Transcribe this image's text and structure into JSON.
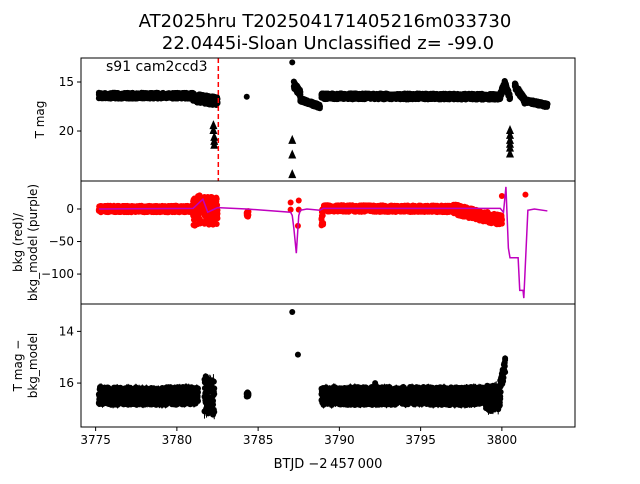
{
  "chart_data": {
    "type": "scatter",
    "title_line1": "AT2025hru  T202504171405216m033730",
    "title_line2": "22.0445i-Sloan Unclassified z= -99.0",
    "xlabel": "BTJD −2 457 000",
    "xlim": [
      3774.1,
      3804.5
    ],
    "xticks": [
      3775,
      3780,
      3785,
      3790,
      3795,
      3800
    ],
    "xtick_labels": [
      "3775",
      "3780",
      "3785",
      "3790",
      "3795",
      "3800"
    ],
    "colors": {
      "mag": "#000000",
      "bkg": "#ff0000",
      "model": "#bf00bf",
      "marker_line": "#ff0000"
    },
    "panels": [
      {
        "id": "tmag",
        "ylabel": [
          "T mag"
        ],
        "ylim": [
          25.1,
          12.55
        ],
        "yticks": [
          15,
          20
        ],
        "ytick_labels": [
          "15",
          "20"
        ],
        "annotation": "s91 cam2ccd3",
        "vline_x": 3782.55,
        "bands": [
          {
            "x0": 3775.2,
            "x1": 3781.0,
            "y0": 16.4,
            "y1": 16.4,
            "spread": 0.3
          },
          {
            "x0": 3781.0,
            "x1": 3782.5,
            "y0": 16.6,
            "y1": 17.0,
            "spread": 0.45
          },
          {
            "x0": 3787.2,
            "x1": 3787.6,
            "y0": 15.3,
            "y1": 16.2,
            "spread": 0.35
          },
          {
            "x0": 3787.6,
            "x1": 3788.8,
            "y0": 16.8,
            "y1": 17.5,
            "spread": 0.2
          },
          {
            "x0": 3788.9,
            "x1": 3799.9,
            "y0": 16.45,
            "y1": 16.5,
            "spread": 0.3
          },
          {
            "x0": 3799.9,
            "x1": 3800.2,
            "y0": 16.3,
            "y1": 15.1,
            "spread": 0.3
          },
          {
            "x0": 3800.2,
            "x1": 3800.5,
            "y0": 15.3,
            "y1": 16.6,
            "spread": 0.3
          },
          {
            "x0": 3800.8,
            "x1": 3801.4,
            "y0": 15.4,
            "y1": 16.9,
            "spread": 0.3
          },
          {
            "x0": 3801.4,
            "x1": 3802.8,
            "y0": 16.9,
            "y1": 17.4,
            "spread": 0.2
          }
        ],
        "points": [
          [
            3784.3,
            16.5
          ],
          [
            3787.1,
            13.0
          ]
        ],
        "upper_limits": [
          [
            3782.25,
            19.4
          ],
          [
            3782.25,
            19.9
          ],
          [
            3782.3,
            20.6
          ],
          [
            3782.3,
            21.0
          ],
          [
            3782.3,
            21.4
          ],
          [
            3787.1,
            20.9
          ],
          [
            3787.1,
            22.4
          ],
          [
            3787.1,
            24.4
          ],
          [
            3800.5,
            19.9
          ],
          [
            3800.5,
            20.4
          ],
          [
            3800.5,
            20.9
          ],
          [
            3800.5,
            21.3
          ],
          [
            3800.5,
            21.7
          ],
          [
            3800.5,
            22.3
          ]
        ]
      },
      {
        "id": "bkg",
        "ylabel": [
          "bkg (red)/",
          "bkg_model (purple)"
        ],
        "ylim": [
          -146,
          43
        ],
        "yticks": [
          0,
          -50,
          -100
        ],
        "ytick_labels": [
          "0",
          "−50",
          "−100"
        ],
        "bands": [
          {
            "x0": 3775.2,
            "x1": 3781.0,
            "y0": 0,
            "y1": 0,
            "spread": 5
          },
          {
            "x0": 3781.0,
            "x1": 3781.5,
            "y0": -5,
            "y1": 0,
            "spread": 22
          },
          {
            "x0": 3781.7,
            "x1": 3782.5,
            "y0": -3,
            "y1": -3,
            "spread": 22
          },
          {
            "x0": 3784.3,
            "x1": 3784.4,
            "y0": -8,
            "y1": -8,
            "spread": 5
          },
          {
            "x0": 3788.9,
            "x1": 3789.0,
            "y0": -12,
            "y1": -12,
            "spread": 15
          },
          {
            "x0": 3789.0,
            "x1": 3797.0,
            "y0": 1,
            "y1": 0,
            "spread": 5
          },
          {
            "x0": 3797.0,
            "x1": 3800.0,
            "y0": 0,
            "y1": -18,
            "spread": 8
          }
        ],
        "points": [
          [
            3787.0,
            10
          ],
          [
            3787.0,
            -1
          ],
          [
            3787.5,
            13
          ],
          [
            3787.5,
            -1
          ],
          [
            3787.45,
            -26
          ],
          [
            3800.0,
            20
          ],
          [
            3801.45,
            22
          ]
        ],
        "model_line": [
          [
            3775.2,
            0
          ],
          [
            3781.0,
            1
          ],
          [
            3781.6,
            15
          ],
          [
            3781.9,
            -5
          ],
          [
            3782.5,
            2
          ],
          [
            3784.3,
            0
          ],
          [
            3787.0,
            -5
          ],
          [
            3787.1,
            -10
          ],
          [
            3787.2,
            -30
          ],
          [
            3787.35,
            -68
          ],
          [
            3787.5,
            -10
          ],
          [
            3787.6,
            -2
          ],
          [
            3788.0,
            0
          ],
          [
            3788.8,
            -2
          ],
          [
            3789.0,
            1
          ],
          [
            3799.9,
            1
          ],
          [
            3800.1,
            -5
          ],
          [
            3800.25,
            34
          ],
          [
            3800.4,
            -60
          ],
          [
            3800.5,
            -75
          ],
          [
            3801.0,
            -75
          ],
          [
            3801.1,
            -125
          ],
          [
            3801.3,
            -125
          ],
          [
            3801.35,
            -137
          ],
          [
            3801.6,
            -2
          ],
          [
            3802.0,
            0
          ],
          [
            3802.8,
            -3
          ]
        ]
      },
      {
        "id": "diff",
        "ylabel": [
          "T mag −",
          "bkg_model"
        ],
        "ylim": [
          17.7,
          12.94
        ],
        "yticks": [
          14,
          16
        ],
        "ytick_labels": [
          "14",
          "16"
        ],
        "bands": [
          {
            "x0": 3775.2,
            "x1": 3781.3,
            "y0": 16.5,
            "y1": 16.5,
            "spread": 0.35
          },
          {
            "x0": 3781.7,
            "x1": 3782.3,
            "y0": 16.4,
            "y1": 16.6,
            "spread": 0.7
          },
          {
            "x0": 3784.3,
            "x1": 3784.4,
            "y0": 16.45,
            "y1": 16.45,
            "spread": 0.1
          },
          {
            "x0": 3788.9,
            "x1": 3799.0,
            "y0": 16.5,
            "y1": 16.5,
            "spread": 0.35
          },
          {
            "x0": 3799.0,
            "x1": 3799.9,
            "y0": 16.6,
            "y1": 16.6,
            "spread": 0.5
          },
          {
            "x0": 3799.9,
            "x1": 3800.2,
            "y0": 16.2,
            "y1": 15.3,
            "spread": 0.3
          }
        ],
        "points": [
          [
            3787.1,
            13.25
          ],
          [
            3787.45,
            14.9
          ],
          [
            3792.2,
            16.0
          ]
        ]
      }
    ]
  }
}
